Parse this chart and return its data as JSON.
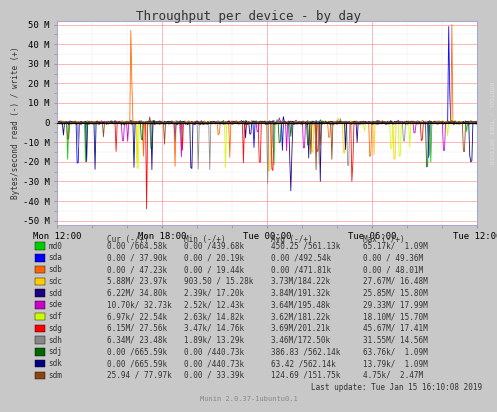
{
  "title": "Throughput per device - by day",
  "ylabel": "Bytes/second read (-) / write (+)",
  "yticks": [
    -50,
    -40,
    -30,
    -20,
    -10,
    0,
    10,
    20,
    30,
    40,
    50
  ],
  "ytick_labels": [
    "-50 M",
    "-40 M",
    "-30 M",
    "-20 M",
    "-10 M",
    "0",
    "10 M",
    "20 M",
    "30 M",
    "40 M",
    "50 M"
  ],
  "ylim": [
    -52,
    52
  ],
  "xtick_labels": [
    "Mon 12:00",
    "Mon 18:00",
    "Tue 00:00",
    "Tue 06:00",
    "Tue 12:00"
  ],
  "bg_color": "#c8c8c8",
  "plot_bg_color": "#ffffff",
  "grid_color_major": "#ff9999",
  "grid_color_minor": "#e8e8e8",
  "right_label": "RRDTOOL / TOBI OETIKER",
  "bottom_label": "Munin 2.0.37-1ubuntu0.1",
  "last_update": "Last update: Tue Jan 15 16:10:08 2019",
  "devices": [
    {
      "name": "md0",
      "color": "#00cc00"
    },
    {
      "name": "sda",
      "color": "#0000ff"
    },
    {
      "name": "sdb",
      "color": "#ff6600"
    },
    {
      "name": "sdc",
      "color": "#ffcc00"
    },
    {
      "name": "sdd",
      "color": "#1a0080"
    },
    {
      "name": "sde",
      "color": "#cc00cc"
    },
    {
      "name": "sdf",
      "color": "#ccff00"
    },
    {
      "name": "sdg",
      "color": "#ff0000"
    },
    {
      "name": "sdh",
      "color": "#888888"
    },
    {
      "name": "sdj",
      "color": "#006600"
    },
    {
      "name": "sdk",
      "color": "#000080"
    },
    {
      "name": "sdm",
      "color": "#8B4513"
    }
  ],
  "legend_headers": [
    "Cur (-/+)",
    "Min (-/+)",
    "Avg (-/+)",
    "Max (-/+)"
  ],
  "legend_rows": [
    [
      "md0",
      "0.00 /664.58k",
      "0.00 /439.68k",
      "450.25 /561.13k",
      "65.17k/  1.09M"
    ],
    [
      "sda",
      "0.00 / 37.90k",
      "0.00 / 20.19k",
      "0.00 /492.54k",
      "0.00 / 49.36M"
    ],
    [
      "sdb",
      "0.00 / 47.23k",
      "0.00 / 19.44k",
      "0.00 /471.81k",
      "0.00 / 48.01M"
    ],
    [
      "sdc",
      "5.88M/ 23.97k",
      "903.50 / 15.28k",
      "3.73M/184.22k",
      "27.67M/ 16.48M"
    ],
    [
      "sdd",
      "6.22M/ 34.80k",
      "2.39k/ 17.20k",
      "3.84M/191.32k",
      "25.85M/ 15.80M"
    ],
    [
      "sde",
      "10.70k/ 32.73k",
      "2.52k/ 12.43k",
      "3.64M/195.48k",
      "29.33M/ 17.99M"
    ],
    [
      "sdf",
      "6.97k/ 22.54k",
      "2.63k/ 14.82k",
      "3.62M/181.22k",
      "18.10M/ 15.70M"
    ],
    [
      "sdg",
      "6.15M/ 27.56k",
      "3.47k/ 14.76k",
      "3.69M/201.21k",
      "45.67M/ 17.41M"
    ],
    [
      "sdh",
      "6.34M/ 23.48k",
      "1.89k/ 13.29k",
      "3.46M/172.50k",
      "31.55M/ 14.56M"
    ],
    [
      "sdj",
      "0.00 /665.59k",
      "0.00 /440.73k",
      "386.83 /562.14k",
      "63.76k/  1.09M"
    ],
    [
      "sdk",
      "0.00 /665.59k",
      "0.00 /440.73k",
      "63.42 /562.14k",
      "13.79k/  1.09M"
    ],
    [
      "sdm",
      "25.94 / 77.97k",
      "0.00 / 33.39k",
      "124.69 /151.75k",
      "4.75k/  2.47M"
    ]
  ]
}
